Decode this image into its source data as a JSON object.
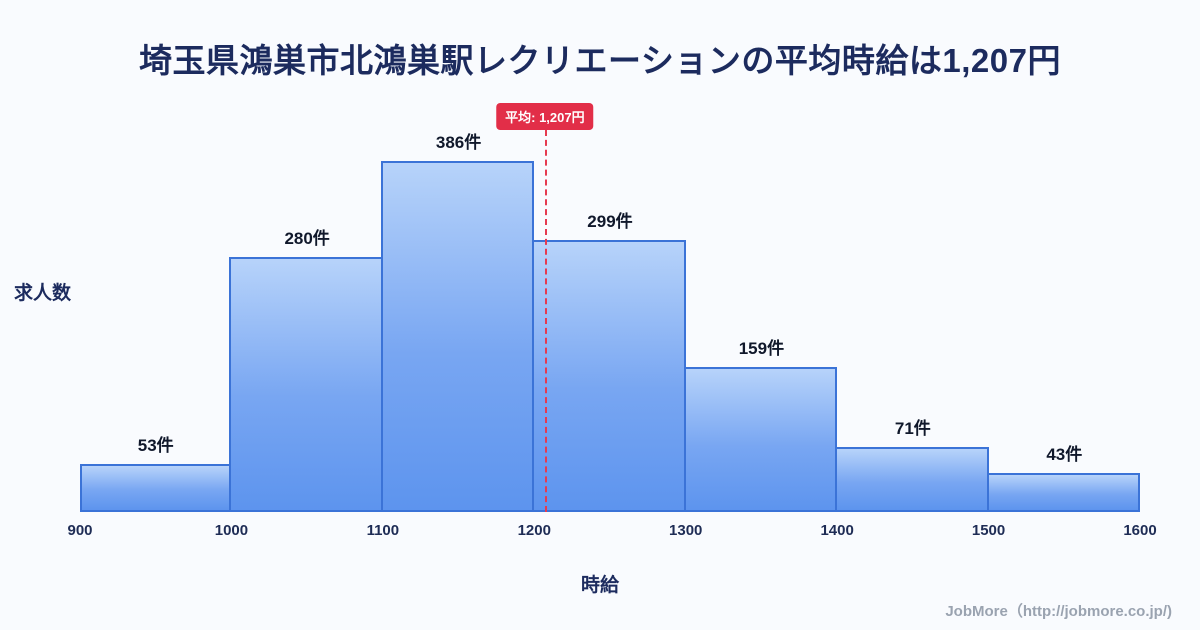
{
  "title": "埼玉県鴻巣市北鴻巣駅レクリエーションの平均時給は1,207円",
  "chart_data": {
    "type": "bar",
    "title": "埼玉県鴻巣市北鴻巣駅レクリエーションの平均時給は1,207円",
    "bin_edges": [
      900,
      1000,
      1100,
      1200,
      1300,
      1400,
      1500,
      1600
    ],
    "categories": [
      "900-1000",
      "1000-1100",
      "1100-1200",
      "1200-1300",
      "1300-1400",
      "1400-1500",
      "1500-1600"
    ],
    "values": [
      53,
      280,
      386,
      299,
      159,
      71,
      43
    ],
    "bar_labels": [
      "53件",
      "280件",
      "386件",
      "299件",
      "159件",
      "71件",
      "43件"
    ],
    "xlabel": "時給",
    "ylabel": "求人数",
    "x_ticks": [
      "900",
      "1000",
      "1100",
      "1200",
      "1300",
      "1400",
      "1500",
      "1600"
    ],
    "xlim": [
      900,
      1600
    ],
    "ylim": [
      0,
      420
    ],
    "grid": false,
    "legend": "none",
    "average_line": {
      "value": 1207,
      "label": "平均: 1,207円",
      "color": "#e63a50",
      "style": "dashed"
    },
    "bar_color_top": "#b7d3fa",
    "bar_color_bottom": "#5d94ee",
    "bar_border_color": "#3b73d7"
  },
  "footer": {
    "credit": "JobMore（http://jobmore.co.jp/)"
  }
}
